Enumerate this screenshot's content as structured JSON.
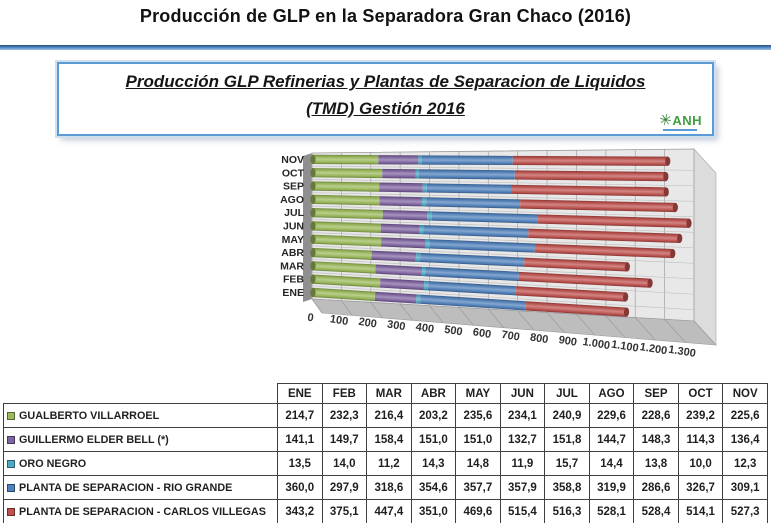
{
  "page": {
    "title": "Producción de GLP en la Separadora Gran Chaco (2016)"
  },
  "chart_box": {
    "title_line1": "Producción GLP Refinerias y Plantas de Separacion de Liquidos",
    "title_line2": "(TMD) Gestión 2016",
    "logo_text": "ANH",
    "logo_color": "#3f9e3f",
    "border_color": "#5b9bd5"
  },
  "chart_data": {
    "type": "bar",
    "orientation": "horizontal",
    "stacked": true,
    "style": "3d-cylinder",
    "title": "Producción GLP Refinerias y Plantas de Separacion de Liquidos (TMD) Gestión 2016",
    "categories": [
      "ENE",
      "FEB",
      "MAR",
      "ABR",
      "MAY",
      "JUN",
      "JUL",
      "AGO",
      "SEP",
      "OCT",
      "NOV"
    ],
    "category_axis_top_to_bottom": [
      "NOV",
      "OCT",
      "SEP",
      "AGO",
      "JUL",
      "JUN",
      "MAY",
      "ABR",
      "MAR",
      "FEB",
      "ENE"
    ],
    "xlim": [
      0,
      1300
    ],
    "x_ticks": [
      "0",
      "100",
      "200",
      "300",
      "400",
      "500",
      "600",
      "700",
      "800",
      "900",
      "1.000",
      "1.100",
      "1.200",
      "1.300"
    ],
    "grid": true,
    "legend_position": "table-below",
    "series": [
      {
        "name": "GUALBERTO VILLARROEL",
        "color": "#9BBB59",
        "values": [
          214.7,
          232.3,
          216.4,
          203.2,
          235.6,
          234.1,
          240.9,
          229.6,
          228.6,
          239.2,
          225.6
        ]
      },
      {
        "name": "GUILLERMO ELDER BELL (*)",
        "color": "#8064A2",
        "values": [
          141.1,
          149.7,
          158.4,
          151.0,
          151.0,
          132.7,
          151.8,
          144.7,
          148.3,
          114.3,
          136.4
        ]
      },
      {
        "name": "ORO NEGRO",
        "color": "#4BACC6",
        "values": [
          13.5,
          14.0,
          11.2,
          14.3,
          14.8,
          11.9,
          15.7,
          14.4,
          13.8,
          10.0,
          12.3
        ]
      },
      {
        "name": "PLANTA DE SEPARACION - RIO GRANDE",
        "color": "#4F81BD",
        "values": [
          360.0,
          297.9,
          318.6,
          354.6,
          357.7,
          357.9,
          358.8,
          319.9,
          286.6,
          326.7,
          309.1
        ]
      },
      {
        "name": "PLANTA DE SEPARACION - CARLOS VILLEGAS",
        "color": "#C0504D",
        "values": [
          343.2,
          375.1,
          447.4,
          351.0,
          469.6,
          515.4,
          516.3,
          528.1,
          528.4,
          514.1,
          527.3
        ]
      }
    ]
  },
  "table": {
    "col_headers": [
      "ENE",
      "FEB",
      "MAR",
      "ABR",
      "MAY",
      "JUN",
      "JUL",
      "AGO",
      "SEP",
      "OCT",
      "NOV"
    ],
    "rows": [
      {
        "label": "GUALBERTO VILLARROEL",
        "key_color": "#9BBB59",
        "values": [
          "214,7",
          "232,3",
          "216,4",
          "203,2",
          "235,6",
          "234,1",
          "240,9",
          "229,6",
          "228,6",
          "239,2",
          "225,6"
        ]
      },
      {
        "label": "GUILLERMO ELDER BELL (*)",
        "key_color": "#8064A2",
        "values": [
          "141,1",
          "149,7",
          "158,4",
          "151,0",
          "151,0",
          "132,7",
          "151,8",
          "144,7",
          "148,3",
          "114,3",
          "136,4"
        ]
      },
      {
        "label": "ORO NEGRO",
        "key_color": "#4BACC6",
        "values": [
          "13,5",
          "14,0",
          "11,2",
          "14,3",
          "14,8",
          "11,9",
          "15,7",
          "14,4",
          "13,8",
          "10,0",
          "12,3"
        ]
      },
      {
        "label": "PLANTA DE SEPARACION - RIO GRANDE",
        "key_color": "#4F81BD",
        "values": [
          "360,0",
          "297,9",
          "318,6",
          "354,6",
          "357,7",
          "357,9",
          "358,8",
          "319,9",
          "286,6",
          "326,7",
          "309,1"
        ]
      },
      {
        "label": "PLANTA DE SEPARACION - CARLOS VILLEGAS",
        "key_color": "#C0504D",
        "values": [
          "343,2",
          "375,1",
          "447,4",
          "351,0",
          "469,6",
          "515,4",
          "516,3",
          "528,1",
          "528,4",
          "514,1",
          "527,3"
        ]
      }
    ]
  }
}
